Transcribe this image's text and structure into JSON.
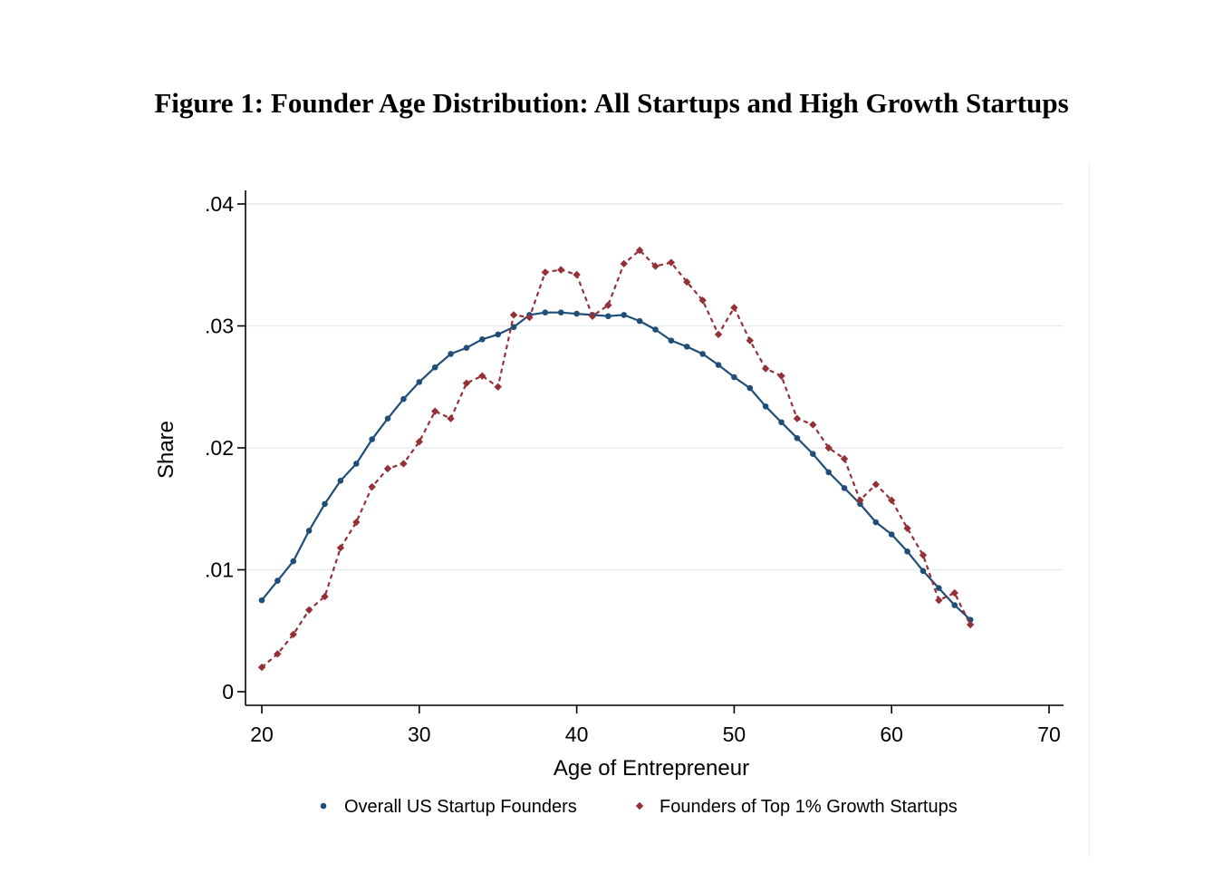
{
  "figure": {
    "title": "Figure 1: Founder Age Distribution: All Startups and High Growth Startups"
  },
  "chart_data": {
    "type": "line",
    "title": "Figure 1: Founder Age Distribution: All Startups and High Growth Startups",
    "xlabel": "Age of Entrepreneur",
    "ylabel": "Share",
    "xlim": [
      20,
      70
    ],
    "ylim": [
      0,
      0.04
    ],
    "x_ticks": [
      20,
      30,
      40,
      50,
      60,
      70
    ],
    "x_tick_labels": [
      "20",
      "30",
      "40",
      "50",
      "60",
      "70"
    ],
    "y_ticks": [
      0,
      0.01,
      0.02,
      0.03,
      0.04
    ],
    "y_tick_labels": [
      "0",
      ".01",
      ".02",
      ".03",
      ".04"
    ],
    "grid": true,
    "legend_position": "bottom",
    "x": [
      20,
      21,
      22,
      23,
      24,
      25,
      26,
      27,
      28,
      29,
      30,
      31,
      32,
      33,
      34,
      35,
      36,
      37,
      38,
      39,
      40,
      41,
      42,
      43,
      44,
      45,
      46,
      47,
      48,
      49,
      50,
      51,
      52,
      53,
      54,
      55,
      56,
      57,
      58,
      59,
      60,
      61,
      62,
      63,
      64,
      65
    ],
    "series": [
      {
        "name": "Overall US Startup Founders",
        "color": "#1f4e79",
        "line_style": "solid",
        "marker": "circle",
        "values": [
          0.0075,
          0.0091,
          0.0107,
          0.0132,
          0.0154,
          0.0173,
          0.0187,
          0.0207,
          0.0224,
          0.024,
          0.0254,
          0.0266,
          0.0277,
          0.0282,
          0.0289,
          0.0293,
          0.0299,
          0.0309,
          0.0311,
          0.0311,
          0.031,
          0.0309,
          0.0308,
          0.0309,
          0.0304,
          0.0297,
          0.0288,
          0.0283,
          0.0277,
          0.0268,
          0.0258,
          0.0249,
          0.0234,
          0.0221,
          0.0208,
          0.0195,
          0.018,
          0.0167,
          0.0154,
          0.0139,
          0.0129,
          0.0115,
          0.0099,
          0.0085,
          0.0071,
          0.0059
        ]
      },
      {
        "name": "Founders of Top 1% Growth Startups",
        "color": "#943138",
        "line_style": "dashed",
        "marker": "diamond",
        "values": [
          0.002,
          0.0031,
          0.0047,
          0.0067,
          0.0078,
          0.0118,
          0.0139,
          0.0168,
          0.0183,
          0.0187,
          0.0205,
          0.023,
          0.0224,
          0.0253,
          0.0259,
          0.025,
          0.0309,
          0.0307,
          0.0344,
          0.0346,
          0.0342,
          0.0308,
          0.0317,
          0.0351,
          0.0362,
          0.0349,
          0.0352,
          0.0336,
          0.0321,
          0.0293,
          0.0315,
          0.0288,
          0.0265,
          0.0259,
          0.0224,
          0.0219,
          0.02,
          0.0191,
          0.0157,
          0.017,
          0.0157,
          0.0134,
          0.0112,
          0.0075,
          0.0081,
          0.0055
        ]
      }
    ]
  }
}
